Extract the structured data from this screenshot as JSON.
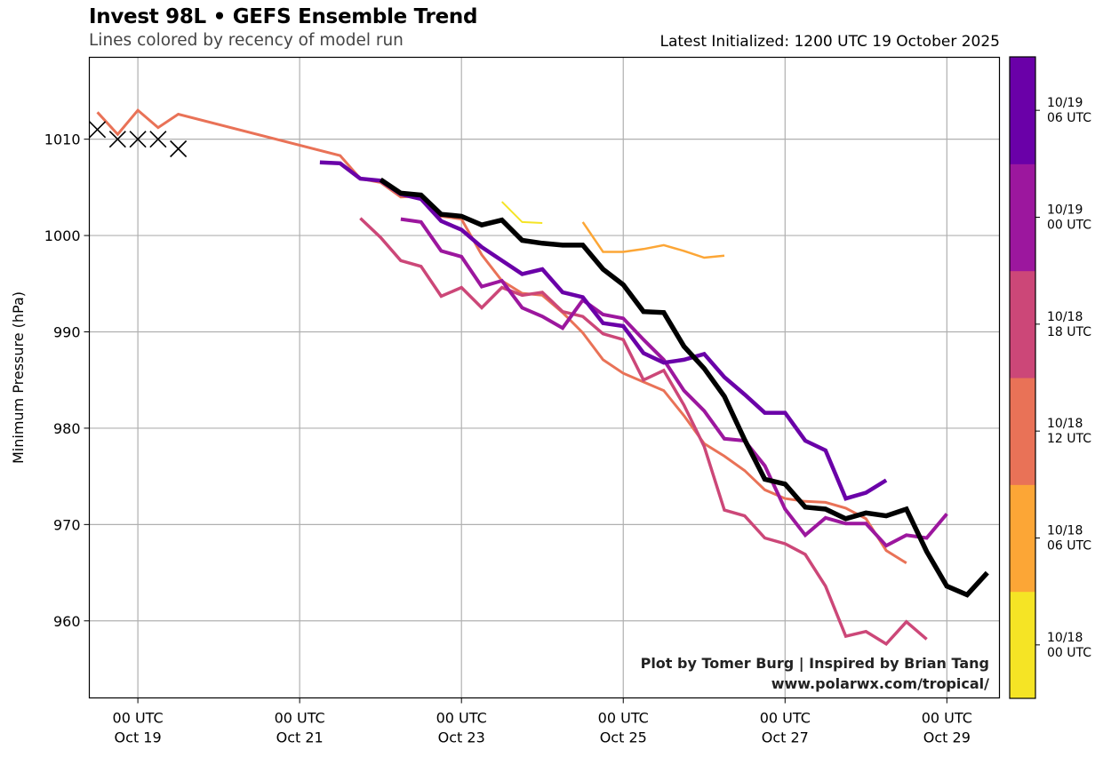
{
  "header": {
    "title": "Invest 98L • GEFS Ensemble Trend",
    "subtitle": "Lines colored by recency of model run",
    "latest": "Latest Initialized: 1200 UTC 19 October 2025"
  },
  "credits": {
    "line1": "Plot by Tomer Burg | Inspired by Brian Tang",
    "line2": "www.polarwx.com/tropical/"
  },
  "chart_data": {
    "type": "line",
    "title": "Invest 98L • GEFS Ensemble Trend",
    "subtitle": "Lines colored by recency of model run",
    "ylabel": "Minimum Pressure (hPa)",
    "xlabel": "",
    "x_units": "6-hour steps from 12 UTC Oct 18",
    "xlim": [
      -0.4,
      44.6
    ],
    "ylim": [
      952,
      1018.5
    ],
    "grid": true,
    "yticks": [
      960,
      970,
      980,
      990,
      1000,
      1010
    ],
    "xticks": [
      {
        "step": 2,
        "line1": "00 UTC",
        "line2": "Oct 19"
      },
      {
        "step": 10,
        "line1": "00 UTC",
        "line2": "Oct 21"
      },
      {
        "step": 18,
        "line1": "00 UTC",
        "line2": "Oct 23"
      },
      {
        "step": 26,
        "line1": "00 UTC",
        "line2": "Oct 25"
      },
      {
        "step": 34,
        "line1": "00 UTC",
        "line2": "Oct 27"
      },
      {
        "step": 42,
        "line1": "00 UTC",
        "line2": "Oct 29"
      }
    ],
    "observed": {
      "name": "Observed (X markers)",
      "color": "#000000",
      "steps": [
        0,
        1,
        2,
        3,
        4
      ],
      "values": [
        1011,
        1010,
        1010,
        1010,
        1009
      ]
    },
    "series": [
      {
        "name": "10/18 00 UTC",
        "color": "#f5e425",
        "width": 2,
        "start": 20,
        "values": [
          1003.5,
          1001.4,
          1001.3
        ]
      },
      {
        "name": "10/18 06 UTC",
        "color": "#fca636",
        "width": 2.5,
        "start": 24,
        "values": [
          1001.4,
          998.3,
          998.3,
          998.6,
          999.0,
          998.4,
          997.7,
          997.9
        ]
      },
      {
        "name": "10/18 12 UTC",
        "color": "#e97257",
        "width": 3,
        "start": 0,
        "values": [
          1012.8,
          1010.5,
          1013.0,
          1011.2,
          1012.6,
          null,
          null,
          null,
          null,
          null,
          null,
          null,
          1008.3,
          1005.9,
          1005.5,
          1004.0,
          1004.1,
          1002.0,
          1001.7,
          998.0,
          995.3,
          994.0,
          993.8,
          992.0,
          989.9,
          987.1,
          985.7,
          984.8,
          983.9,
          981.3,
          978.4,
          977.1,
          975.6,
          973.6,
          972.7,
          972.4,
          972.3,
          971.7,
          970.6,
          967.3,
          966.0
        ]
      },
      {
        "name": "10/18 18 UTC",
        "color": "#cc4778",
        "width": 3.5,
        "start": 13,
        "values": [
          1001.8,
          999.8,
          997.4,
          996.8,
          993.7,
          994.6,
          992.5,
          994.6,
          993.8,
          994.1,
          992.1,
          991.6,
          989.8,
          989.2,
          985.0,
          986.0,
          982.4,
          978.1,
          971.5,
          970.9,
          968.6,
          968.0,
          966.9,
          963.6,
          958.4,
          958.9,
          957.6,
          959.9,
          958.1
        ]
      },
      {
        "name": "10/19 00 UTC",
        "color": "#9c179e",
        "width": 4,
        "start": 15,
        "values": [
          1001.7,
          1001.4,
          998.4,
          997.8,
          994.7,
          995.3,
          992.5,
          991.6,
          990.4,
          993.3,
          991.8,
          991.4,
          989.2,
          987.1,
          983.9,
          981.8,
          978.9,
          978.7,
          976.1,
          971.6,
          968.9,
          970.7,
          970.1,
          970.1,
          967.8,
          968.9,
          968.6,
          971.1
        ]
      },
      {
        "name": "10/19 06 UTC",
        "color": "#6a00a8",
        "width": 4.5,
        "start": 11,
        "values": [
          1007.6,
          1007.5,
          1005.9,
          1005.7,
          1004.3,
          1003.8,
          1001.5,
          1000.6,
          998.8,
          997.4,
          996.0,
          996.5,
          994.1,
          993.6,
          990.9,
          990.6,
          987.8,
          986.8,
          987.1,
          987.7,
          985.3,
          983.5,
          981.6,
          981.6,
          978.7,
          977.7,
          972.7,
          973.3,
          974.6
        ]
      },
      {
        "name": "10/19 12 UTC (latest)",
        "color": "#000000",
        "width": 5.5,
        "start": 14,
        "values": [
          1005.8,
          1004.4,
          1004.2,
          1002.2,
          1002.0,
          1001.1,
          1001.6,
          999.5,
          999.2,
          999.0,
          999.0,
          996.5,
          994.9,
          992.1,
          992.0,
          988.5,
          986.2,
          983.3,
          978.8,
          974.7,
          974.2,
          971.8,
          971.6,
          970.6,
          971.2,
          970.9,
          971.6,
          967.2,
          963.6,
          962.7,
          965.0
        ]
      }
    ],
    "colorbar": {
      "segments": [
        {
          "label_line1": "10/18",
          "label_line2": "00 UTC",
          "color": "#f5e425"
        },
        {
          "label_line1": "10/18",
          "label_line2": "06 UTC",
          "color": "#fca636"
        },
        {
          "label_line1": "10/18",
          "label_line2": "12 UTC",
          "color": "#e97257"
        },
        {
          "label_line1": "10/18",
          "label_line2": "18 UTC",
          "color": "#cc4778"
        },
        {
          "label_line1": "10/19",
          "label_line2": "00 UTC",
          "color": "#9c179e"
        },
        {
          "label_line1": "10/19",
          "label_line2": "06 UTC",
          "color": "#6a00a8"
        }
      ]
    }
  }
}
